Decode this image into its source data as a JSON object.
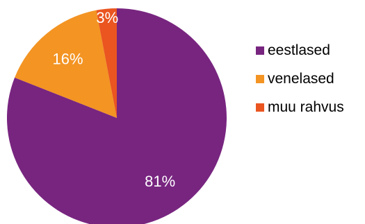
{
  "chart_data": {
    "type": "pie",
    "categories": [
      "eestlased",
      "venelased",
      "muu rahvus"
    ],
    "values": [
      81,
      16,
      3
    ],
    "value_labels": [
      "81%",
      "16%",
      "3%"
    ],
    "unit": "%",
    "colors": [
      "#782580",
      "#F39423",
      "#EA5520"
    ],
    "start_angle_deg": 0,
    "direction": "clockwise",
    "legend_position": "right",
    "title": ""
  }
}
